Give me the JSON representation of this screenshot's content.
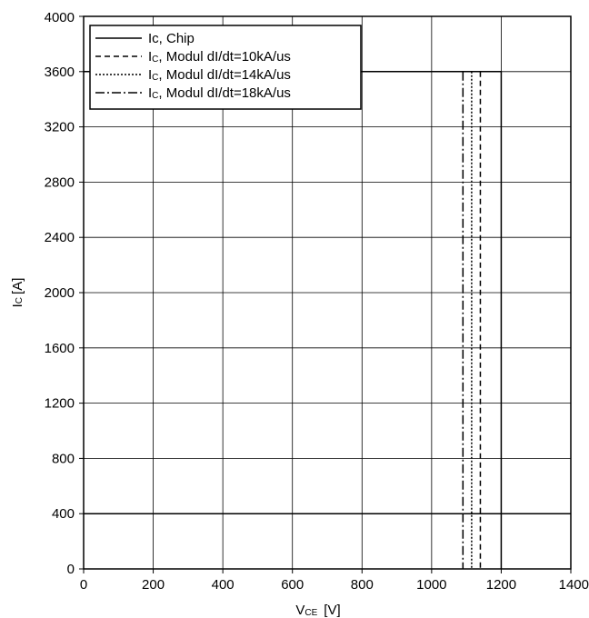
{
  "chart_data": {
    "type": "line",
    "xlabel_main": "V",
    "xlabel_sub": "CE",
    "xlabel_unit": "[V]",
    "ylabel_main": "I",
    "ylabel_sub": "C",
    "ylabel_unit": "[A]",
    "xlim": [
      0,
      1400
    ],
    "ylim": [
      0,
      4000
    ],
    "xticks": [
      0,
      200,
      400,
      600,
      800,
      1000,
      1200,
      1400
    ],
    "yticks": [
      0,
      400,
      800,
      1200,
      1600,
      2000,
      2400,
      2800,
      3200,
      3600,
      4000
    ],
    "grid": true,
    "legend_position": "top-left",
    "series": [
      {
        "name": "Ic, Chip",
        "legend_main": "Ic, Chip",
        "legend_rest": "",
        "style": "solid",
        "x": [
          0,
          1200,
          1200
        ],
        "y": [
          3600,
          3600,
          0
        ]
      },
      {
        "name": "IC, Modul dI/dt=10kA/us",
        "legend_main": "I",
        "legend_sub": "C",
        "legend_rest": ", Modul dI/dt=10kA/us",
        "style": "dashed",
        "x": [
          1140,
          1140
        ],
        "y": [
          3600,
          0
        ]
      },
      {
        "name": "IC, Modul dI/dt=14kA/us",
        "legend_main": "I",
        "legend_sub": "C",
        "legend_rest": ", Modul dI/dt=14kA/us",
        "style": "dotted",
        "x": [
          1115,
          1115
        ],
        "y": [
          3600,
          0
        ]
      },
      {
        "name": "IC, Modul dI/dt=18kA/us",
        "legend_main": "I",
        "legend_sub": "C",
        "legend_rest": ", Modul dI/dt=18kA/us",
        "style": "dashdot",
        "x": [
          1090,
          1090
        ],
        "y": [
          3600,
          0
        ]
      }
    ],
    "hline": {
      "y": 400
    }
  }
}
